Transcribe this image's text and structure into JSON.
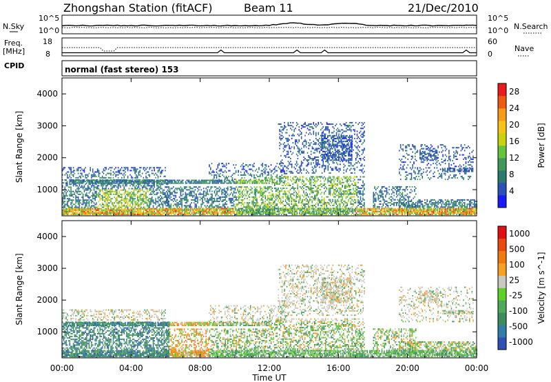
{
  "header": {
    "station": "Zhongshan Station (fitACF)",
    "beam": "Beam 11",
    "date": "21/Dec/2010"
  },
  "side_labels": {
    "nsky": "N.Sky",
    "freq_line1": "Freq.",
    "freq_line2": "[MHz]",
    "cpid": "CPID",
    "nsearch": "N.Search",
    "nave": "Nave"
  },
  "strip_ticks": {
    "noise_left": [
      "10^5",
      "10^0"
    ],
    "noise_right": [
      "10^5",
      "10^0"
    ],
    "freq_left": [
      "18",
      "8"
    ],
    "freq_right": [
      "60",
      "0"
    ]
  },
  "cpid_text": "normal (fast stereo) 153",
  "chart_data": [
    {
      "type": "heatmap",
      "title": "",
      "xlabel": "Time UT",
      "ylabel": "Slant Range [km]",
      "parameter": "Power",
      "x_ticks": [
        "00:00",
        "04:00",
        "08:00",
        "12:00",
        "16:00",
        "20:00",
        "00:00"
      ],
      "xlim_hours": [
        0,
        24
      ],
      "y_ticks": [
        1000,
        2000,
        3000,
        4000
      ],
      "ylim": [
        180,
        4500
      ],
      "colorbar": {
        "label": "Power [dB]",
        "ticks": [
          4,
          8,
          12,
          16,
          20,
          24,
          28
        ],
        "range": [
          0,
          30
        ],
        "colors": [
          "#1a1aff",
          "#2a52b8",
          "#2b7a6f",
          "#3f9a5a",
          "#66c43c",
          "#c8d20f",
          "#f7c318",
          "#f79a16",
          "#ef5a12",
          "#e81c1c"
        ]
      }
    },
    {
      "type": "heatmap",
      "title": "",
      "xlabel": "Time UT",
      "ylabel": "Slant Range [km]",
      "parameter": "Velocity",
      "x_ticks": [
        "00:00",
        "04:00",
        "08:00",
        "12:00",
        "16:00",
        "20:00",
        "00:00"
      ],
      "xlim_hours": [
        0,
        24
      ],
      "y_ticks": [
        1000,
        2000,
        3000,
        4000
      ],
      "ylim": [
        180,
        4500
      ],
      "colorbar": {
        "label": "Velocity [m s^-1]",
        "ticks": [
          "1000",
          "500",
          "100",
          "25",
          "-25",
          "-100",
          "-500",
          "-1000"
        ],
        "colors": [
          "#2f4fb4",
          "#2e7ea8",
          "#3c8c5e",
          "#4fa95a",
          "#5fd02a",
          "#c8c8c0",
          "#f5a020",
          "#f07a10",
          "#e84a10",
          "#e01010"
        ]
      }
    }
  ]
}
